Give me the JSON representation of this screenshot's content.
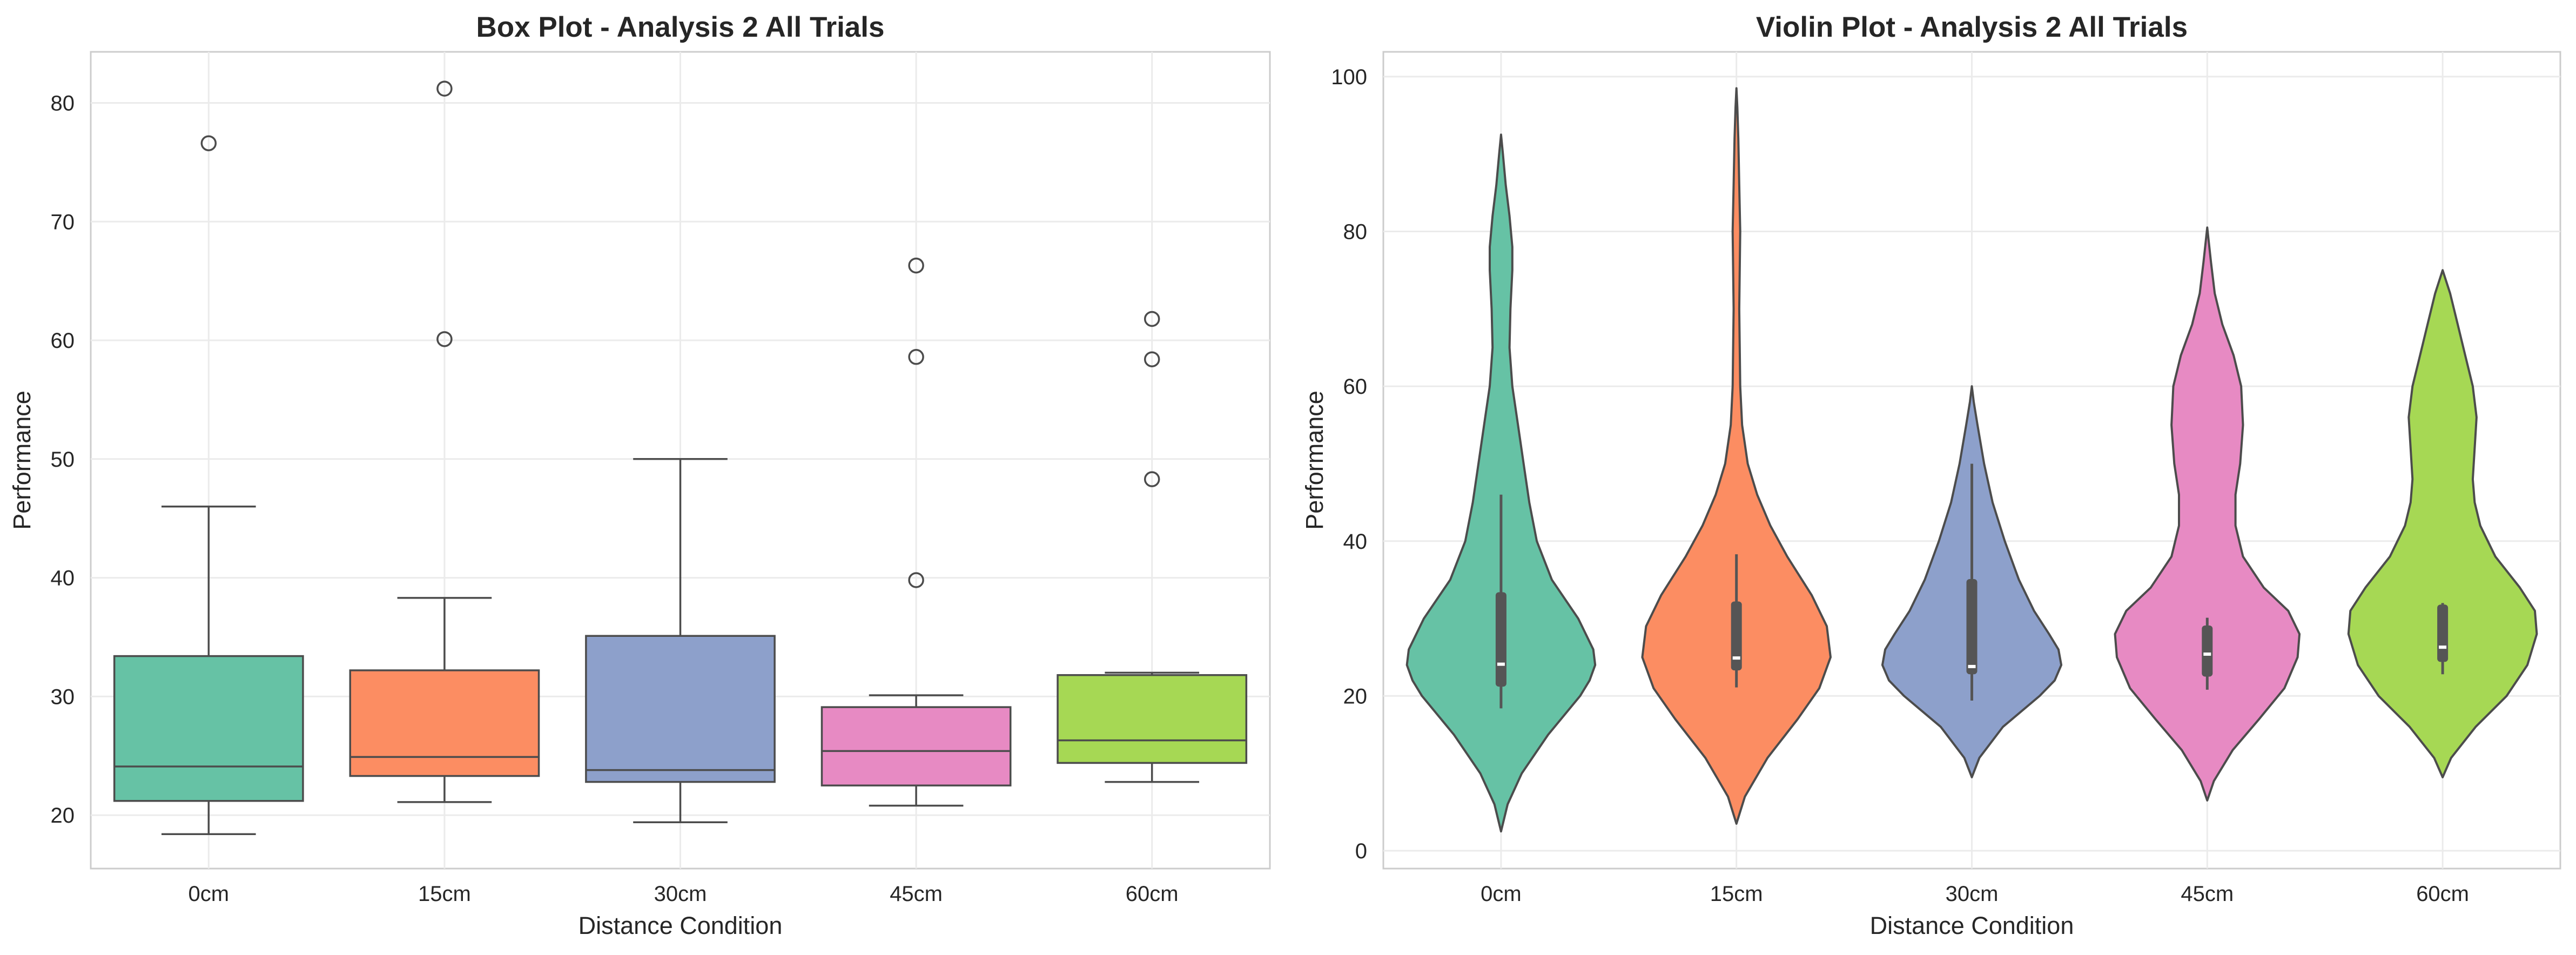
{
  "chart_data": [
    {
      "type": "box",
      "title": "Box Plot - Analysis 2 All Trials",
      "xlabel": "Distance Condition",
      "ylabel": "Performance",
      "ylim": [
        15.5,
        84.3
      ],
      "yticks": [
        20,
        30,
        40,
        50,
        60,
        70,
        80
      ],
      "grid": true,
      "categories": [
        "0cm",
        "15cm",
        "30cm",
        "45cm",
        "60cm"
      ],
      "colors": [
        "#66c2a5",
        "#fc8d62",
        "#8da0cb",
        "#e78ac3",
        "#a6d854"
      ],
      "boxes": [
        {
          "whisker_low": 18.4,
          "q1": 21.2,
          "median": 24.1,
          "q3": 33.4,
          "whisker_high": 46.0,
          "outliers": [
            76.6
          ]
        },
        {
          "whisker_low": 21.1,
          "q1": 23.3,
          "median": 24.9,
          "q3": 32.2,
          "whisker_high": 38.3,
          "outliers": [
            60.1,
            81.2
          ]
        },
        {
          "whisker_low": 19.4,
          "q1": 22.8,
          "median": 23.8,
          "q3": 35.1,
          "whisker_high": 50.0,
          "outliers": []
        },
        {
          "whisker_low": 20.8,
          "q1": 22.5,
          "median": 25.4,
          "q3": 29.1,
          "whisker_high": 30.1,
          "outliers": [
            39.8,
            58.6,
            66.3
          ]
        },
        {
          "whisker_low": 22.8,
          "q1": 24.4,
          "median": 26.3,
          "q3": 31.8,
          "whisker_high": 32.0,
          "outliers": [
            48.3,
            58.4,
            61.8
          ]
        }
      ]
    },
    {
      "type": "violin",
      "title": "Violin Plot - Analysis 2 All Trials",
      "xlabel": "Distance Condition",
      "ylabel": "Performance",
      "ylim": [
        -2.3,
        103.2
      ],
      "yticks": [
        0,
        20,
        40,
        60,
        80,
        100
      ],
      "grid": true,
      "categories": [
        "0cm",
        "15cm",
        "30cm",
        "45cm",
        "60cm"
      ],
      "colors": [
        "#66c2a5",
        "#fc8d62",
        "#8da0cb",
        "#e78ac3",
        "#a6d854"
      ],
      "violins": [
        {
          "min": 2.5,
          "max": 92.5,
          "profile": [
            [
              2.5,
              0
            ],
            [
              6,
              0.07
            ],
            [
              10,
              0.22
            ],
            [
              15,
              0.5
            ],
            [
              20,
              0.84
            ],
            [
              22,
              0.94
            ],
            [
              24,
              1.0
            ],
            [
              26,
              0.98
            ],
            [
              30,
              0.82
            ],
            [
              35,
              0.54
            ],
            [
              40,
              0.38
            ],
            [
              45,
              0.3
            ],
            [
              50,
              0.24
            ],
            [
              55,
              0.18
            ],
            [
              60,
              0.12
            ],
            [
              65,
              0.09
            ],
            [
              70,
              0.1
            ],
            [
              75,
              0.12
            ],
            [
              78,
              0.12
            ],
            [
              82,
              0.09
            ],
            [
              86,
              0.05
            ],
            [
              90,
              0.02
            ],
            [
              92.5,
              0
            ]
          ],
          "inner": {
            "whisker_low": 18.4,
            "q1": 21.2,
            "median": 24.1,
            "q3": 33.4,
            "whisker_high": 46.0
          }
        },
        {
          "min": 3.5,
          "max": 98.5,
          "profile": [
            [
              3.5,
              0
            ],
            [
              7,
              0.09
            ],
            [
              12,
              0.33
            ],
            [
              17,
              0.65
            ],
            [
              21,
              0.88
            ],
            [
              25,
              1.0
            ],
            [
              29,
              0.96
            ],
            [
              33,
              0.8
            ],
            [
              38,
              0.54
            ],
            [
              42,
              0.36
            ],
            [
              46,
              0.22
            ],
            [
              50,
              0.12
            ],
            [
              55,
              0.06
            ],
            [
              60,
              0.04
            ],
            [
              70,
              0.03
            ],
            [
              80,
              0.04
            ],
            [
              86,
              0.03
            ],
            [
              92,
              0.02
            ],
            [
              96,
              0.01
            ],
            [
              98.5,
              0
            ]
          ],
          "inner": {
            "whisker_low": 21.1,
            "q1": 23.3,
            "median": 24.9,
            "q3": 32.2,
            "whisker_high": 38.3
          }
        },
        {
          "min": 9.5,
          "max": 60,
          "profile": [
            [
              9.5,
              0
            ],
            [
              12,
              0.08
            ],
            [
              16,
              0.33
            ],
            [
              20,
              0.72
            ],
            [
              22,
              0.88
            ],
            [
              24,
              0.95
            ],
            [
              26,
              0.92
            ],
            [
              28,
              0.82
            ],
            [
              31,
              0.66
            ],
            [
              35,
              0.5
            ],
            [
              40,
              0.35
            ],
            [
              45,
              0.22
            ],
            [
              50,
              0.13
            ],
            [
              55,
              0.06
            ],
            [
              58,
              0.02
            ],
            [
              60,
              0
            ]
          ],
          "inner": {
            "whisker_low": 19.4,
            "q1": 22.8,
            "median": 23.8,
            "q3": 35.1,
            "whisker_high": 50.0
          }
        },
        {
          "min": 6.5,
          "max": 80.5,
          "profile": [
            [
              6.5,
              0
            ],
            [
              9,
              0.07
            ],
            [
              13,
              0.27
            ],
            [
              17,
              0.55
            ],
            [
              21,
              0.82
            ],
            [
              25,
              0.96
            ],
            [
              28,
              0.98
            ],
            [
              31,
              0.86
            ],
            [
              34,
              0.6
            ],
            [
              38,
              0.38
            ],
            [
              42,
              0.3
            ],
            [
              46,
              0.3
            ],
            [
              50,
              0.35
            ],
            [
              55,
              0.38
            ],
            [
              60,
              0.36
            ],
            [
              64,
              0.28
            ],
            [
              68,
              0.16
            ],
            [
              72,
              0.08
            ],
            [
              76,
              0.04
            ],
            [
              80.5,
              0
            ]
          ],
          "inner": {
            "whisker_low": 20.8,
            "q1": 22.5,
            "median": 25.4,
            "q3": 29.1,
            "whisker_high": 30.1
          }
        },
        {
          "min": 9.5,
          "max": 75,
          "profile": [
            [
              9.5,
              0
            ],
            [
              12,
              0.09
            ],
            [
              16,
              0.35
            ],
            [
              20,
              0.68
            ],
            [
              24,
              0.9
            ],
            [
              28,
              1.0
            ],
            [
              31,
              0.98
            ],
            [
              34,
              0.82
            ],
            [
              38,
              0.56
            ],
            [
              42,
              0.4
            ],
            [
              45,
              0.34
            ],
            [
              48,
              0.32
            ],
            [
              52,
              0.34
            ],
            [
              56,
              0.36
            ],
            [
              60,
              0.32
            ],
            [
              64,
              0.24
            ],
            [
              68,
              0.16
            ],
            [
              72,
              0.08
            ],
            [
              75,
              0
            ]
          ],
          "inner": {
            "whisker_low": 22.8,
            "q1": 24.4,
            "median": 26.3,
            "q3": 31.8,
            "whisker_high": 32.0
          }
        }
      ]
    }
  ]
}
